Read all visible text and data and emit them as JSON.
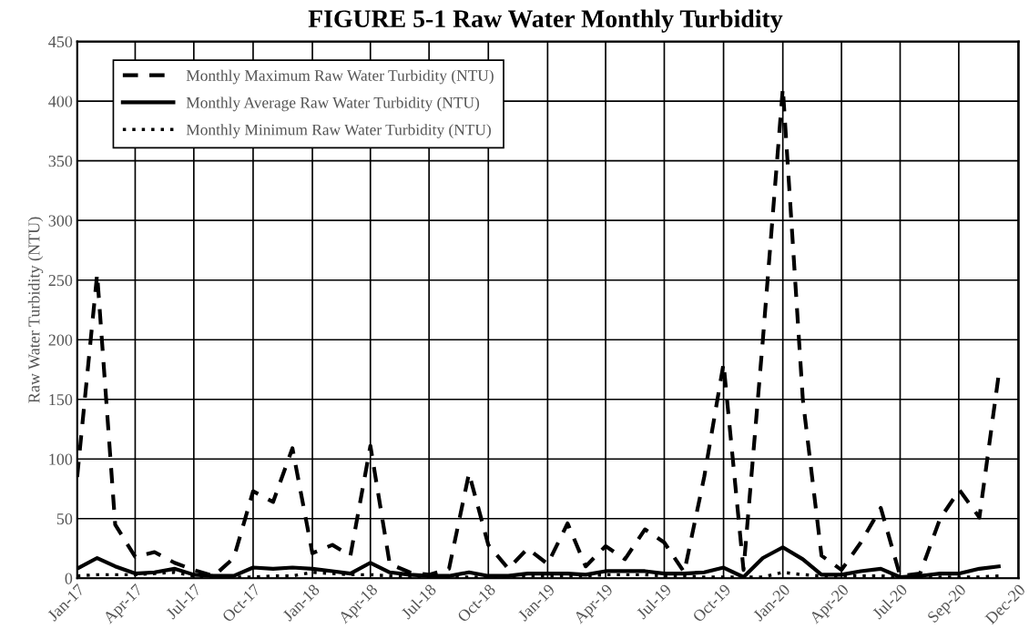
{
  "chart_data": {
    "type": "line",
    "title": "FIGURE 5-1 Raw Water Monthly Turbidity",
    "ylabel": "Raw Water Turbidity (NTU)",
    "x": [
      "2017-01",
      "2017-02",
      "2017-03",
      "2017-04",
      "2017-05",
      "2017-06",
      "2017-07",
      "2017-08",
      "2017-09",
      "2017-10",
      "2017-11",
      "2017-12",
      "2018-01",
      "2018-02",
      "2018-03",
      "2018-04",
      "2018-05",
      "2018-06",
      "2018-07",
      "2018-08",
      "2018-09",
      "2018-10",
      "2018-11",
      "2018-12",
      "2019-01",
      "2019-02",
      "2019-03",
      "2019-04",
      "2019-05",
      "2019-06",
      "2019-07",
      "2019-08",
      "2019-09",
      "2019-10",
      "2019-11",
      "2019-12",
      "2020-01",
      "2020-02",
      "2020-03",
      "2020-04",
      "2020-05",
      "2020-06",
      "2020-07",
      "2020-08",
      "2020-09",
      "2020-10",
      "2020-11",
      "2020-12"
    ],
    "xlim": [
      "2017-01",
      "2021-01"
    ],
    "xticks": [
      {
        "value": "2017-01",
        "label": "Jan-17"
      },
      {
        "value": "2017-04",
        "label": "Apr-17"
      },
      {
        "value": "2017-07",
        "label": "Jul-17"
      },
      {
        "value": "2017-10",
        "label": "Oct-17"
      },
      {
        "value": "2018-01",
        "label": "Jan-18"
      },
      {
        "value": "2018-04",
        "label": "Apr-18"
      },
      {
        "value": "2018-07",
        "label": "Jul-18"
      },
      {
        "value": "2018-10",
        "label": "Oct-18"
      },
      {
        "value": "2019-01",
        "label": "Jan-19"
      },
      {
        "value": "2019-04",
        "label": "Apr-19"
      },
      {
        "value": "2019-07",
        "label": "Jul-19"
      },
      {
        "value": "2019-10",
        "label": "Oct-19"
      },
      {
        "value": "2020-01",
        "label": "Jan-20"
      },
      {
        "value": "2020-04",
        "label": "Apr-20"
      },
      {
        "value": "2020-07",
        "label": "Jul-20"
      },
      {
        "value": "2020-09-30",
        "label": "Sep-20"
      },
      {
        "value": "2020-12-31",
        "label": "Dec-20"
      }
    ],
    "ylim": [
      0,
      450
    ],
    "yticks": [
      0,
      50,
      100,
      150,
      200,
      250,
      300,
      350,
      400,
      450
    ],
    "grid": true,
    "legend": "top left",
    "marker": "none",
    "series": [
      {
        "name": "Monthly Maximum Raw Water Turbidity (NTU)",
        "color": "#000000",
        "line_style": "dashed",
        "values": [
          85,
          255,
          45,
          18,
          22,
          13,
          7,
          2,
          17,
          73,
          64,
          109,
          21,
          28,
          19,
          111,
          12,
          5,
          3,
          8,
          88,
          28,
          8,
          25,
          12,
          46,
          10,
          27,
          16,
          41,
          30,
          5,
          85,
          180,
          7,
          200,
          411,
          150,
          19,
          7,
          30,
          59,
          2,
          4,
          50,
          74,
          51,
          171
        ]
      },
      {
        "name": "Monthly Average Raw Water Turbidity (NTU)",
        "color": "#000000",
        "line_style": "solid",
        "values": [
          8,
          17,
          10,
          4,
          5,
          8,
          3,
          2,
          2,
          9,
          8,
          9,
          8,
          6,
          4,
          13,
          5,
          3,
          2,
          2,
          5,
          2,
          2,
          4,
          4,
          4,
          3,
          6,
          6,
          6,
          4,
          4,
          5,
          9,
          1,
          17,
          26,
          16,
          3,
          3,
          6,
          8,
          1,
          2,
          4,
          4,
          8,
          10
        ]
      },
      {
        "name": "Monthly Minimum Raw Water Turbidity (NTU)",
        "color": "#000000",
        "line_style": "dotted",
        "values": [
          2,
          3,
          3,
          3,
          4,
          5,
          2,
          1,
          1,
          1,
          2,
          2,
          5,
          4,
          3,
          3,
          2,
          1,
          1,
          1,
          1,
          1,
          1,
          2,
          2,
          2,
          2,
          3,
          3,
          3,
          2,
          2,
          1,
          1,
          1,
          1,
          5,
          3,
          2,
          2,
          2,
          2,
          1,
          1,
          1,
          1,
          1,
          2
        ]
      }
    ]
  }
}
